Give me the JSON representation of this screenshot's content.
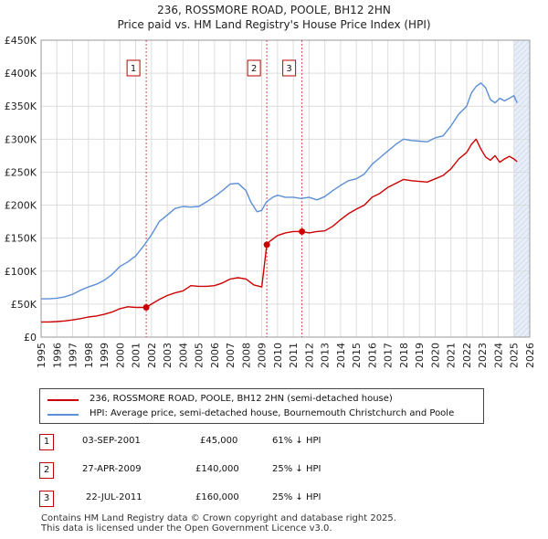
{
  "title_line1": "236, ROSSMORE ROAD, POOLE, BH12 2HN",
  "title_line2": "Price paid vs. HM Land Registry's House Price Index (HPI)",
  "legend": {
    "property": "236, ROSSMORE ROAD, POOLE, BH12 2HN (semi-detached house)",
    "hpi": "HPI: Average price, semi-detached house, Bournemouth Christchurch and Poole"
  },
  "colors": {
    "property": "#cc0000",
    "hpi": "#5b8fd6",
    "grid": "#dddddd",
    "shade": "#e8eef8"
  },
  "transactions": [
    {
      "num": "1",
      "date": "03-SEP-2001",
      "price": "£45,000",
      "diff": "61% ↓ HPI"
    },
    {
      "num": "2",
      "date": "27-APR-2009",
      "price": "£140,000",
      "diff": "25% ↓ HPI"
    },
    {
      "num": "3",
      "date": "22-JUL-2011",
      "price": "£160,000",
      "diff": "25% ↓ HPI"
    }
  ],
  "footer": {
    "line1": "Contains HM Land Registry data © Crown copyright and database right 2025.",
    "line2": "This data is licensed under the Open Government Licence v3.0."
  },
  "chart_data": {
    "type": "line",
    "title": "236, ROSSMORE ROAD, POOLE, BH12 2HN — Price paid vs. HM Land Registry's House Price Index (HPI)",
    "xlabel": "",
    "ylabel": "",
    "xlim": [
      1995,
      2026
    ],
    "ylim": [
      0,
      450000
    ],
    "x_ticks": [
      1995,
      1996,
      1997,
      1998,
      1999,
      2000,
      2001,
      2002,
      2003,
      2004,
      2005,
      2006,
      2007,
      2008,
      2009,
      2010,
      2011,
      2012,
      2013,
      2014,
      2015,
      2016,
      2017,
      2018,
      2019,
      2020,
      2021,
      2022,
      2023,
      2024,
      2025,
      2026
    ],
    "y_ticks": [
      0,
      50000,
      100000,
      150000,
      200000,
      250000,
      300000,
      350000,
      400000,
      450000
    ],
    "y_tick_labels": [
      "£0",
      "£50K",
      "£100K",
      "£150K",
      "£200K",
      "£250K",
      "£300K",
      "£350K",
      "£400K",
      "£450K"
    ],
    "grid": true,
    "shaded_region_from": 2025.0,
    "series": [
      {
        "name": "HPI: Average price, semi-detached house, Bournemouth Christchurch and Poole",
        "color": "#5b8fd6",
        "x": [
          1995,
          1995.5,
          1996,
          1996.5,
          1997,
          1997.5,
          1998,
          1998.5,
          1999,
          1999.5,
          2000,
          2000.5,
          2001,
          2001.5,
          2002,
          2002.5,
          2003,
          2003.5,
          2004,
          2004.5,
          2005,
          2005.5,
          2006,
          2006.5,
          2007,
          2007.5,
          2008,
          2008.3,
          2008.7,
          2009,
          2009.3,
          2009.7,
          2010,
          2010.5,
          2011,
          2011.5,
          2012,
          2012.5,
          2013,
          2013.5,
          2014,
          2014.5,
          2015,
          2015.5,
          2016,
          2016.5,
          2017,
          2017.5,
          2018,
          2018.5,
          2019,
          2019.5,
          2020,
          2020.5,
          2021,
          2021.5,
          2022,
          2022.3,
          2022.6,
          2022.9,
          2023.2,
          2023.5,
          2023.8,
          2024.1,
          2024.4,
          2024.7,
          2025,
          2025.2
        ],
        "values": [
          58000,
          58000,
          59000,
          61000,
          65000,
          71000,
          76000,
          80000,
          86000,
          95000,
          107000,
          114000,
          123000,
          138000,
          155000,
          175000,
          185000,
          195000,
          198000,
          197000,
          198000,
          205000,
          213000,
          222000,
          232000,
          233000,
          222000,
          205000,
          190000,
          192000,
          205000,
          212000,
          215000,
          212000,
          212000,
          210000,
          212000,
          208000,
          213000,
          222000,
          230000,
          237000,
          240000,
          247000,
          262000,
          272000,
          282000,
          292000,
          300000,
          298000,
          297000,
          296000,
          302000,
          305000,
          320000,
          338000,
          350000,
          370000,
          380000,
          385000,
          378000,
          360000,
          355000,
          362000,
          358000,
          362000,
          366000,
          355000
        ]
      },
      {
        "name": "236, ROSSMORE ROAD, POOLE, BH12 2HN (semi-detached house)",
        "color": "#cc0000",
        "x": [
          1995,
          1995.5,
          1996,
          1996.5,
          1997,
          1997.5,
          1998,
          1998.5,
          1999,
          1999.5,
          2000,
          2000.5,
          2001,
          2001.67,
          2002,
          2002.5,
          2003,
          2003.5,
          2004,
          2004.5,
          2005,
          2005.5,
          2006,
          2006.5,
          2007,
          2007.5,
          2008,
          2008.5,
          2009,
          2009.32,
          2009.5,
          2010,
          2010.5,
          2011,
          2011.55,
          2012,
          2012.5,
          2013,
          2013.5,
          2014,
          2014.5,
          2015,
          2015.5,
          2016,
          2016.5,
          2017,
          2017.5,
          2018,
          2018.5,
          2019,
          2019.5,
          2020,
          2020.5,
          2021,
          2021.5,
          2022,
          2022.3,
          2022.6,
          2022.9,
          2023.2,
          2023.5,
          2023.8,
          2024.1,
          2024.4,
          2024.7,
          2025,
          2025.2
        ],
        "values": [
          23000,
          23000,
          23500,
          24500,
          26000,
          28000,
          30500,
          32000,
          34500,
          38000,
          43000,
          46000,
          45000,
          45000,
          50000,
          57000,
          63000,
          67000,
          70000,
          78000,
          77000,
          77000,
          78000,
          82000,
          88000,
          90000,
          88000,
          79000,
          76000,
          140000,
          145000,
          154000,
          158000,
          160000,
          160000,
          158000,
          160000,
          161000,
          168000,
          178000,
          187000,
          194000,
          200000,
          212000,
          218000,
          227000,
          233000,
          239000,
          237000,
          236000,
          235000,
          240000,
          245000,
          255000,
          270000,
          280000,
          292000,
          300000,
          285000,
          273000,
          268000,
          275000,
          265000,
          270000,
          274000,
          270000,
          266000
        ]
      }
    ],
    "annotations": [
      {
        "label": "1",
        "x": 2001.67,
        "value": 45000
      },
      {
        "label": "2",
        "x": 2009.32,
        "value": 140000
      },
      {
        "label": "3",
        "x": 2011.55,
        "value": 160000
      }
    ]
  }
}
